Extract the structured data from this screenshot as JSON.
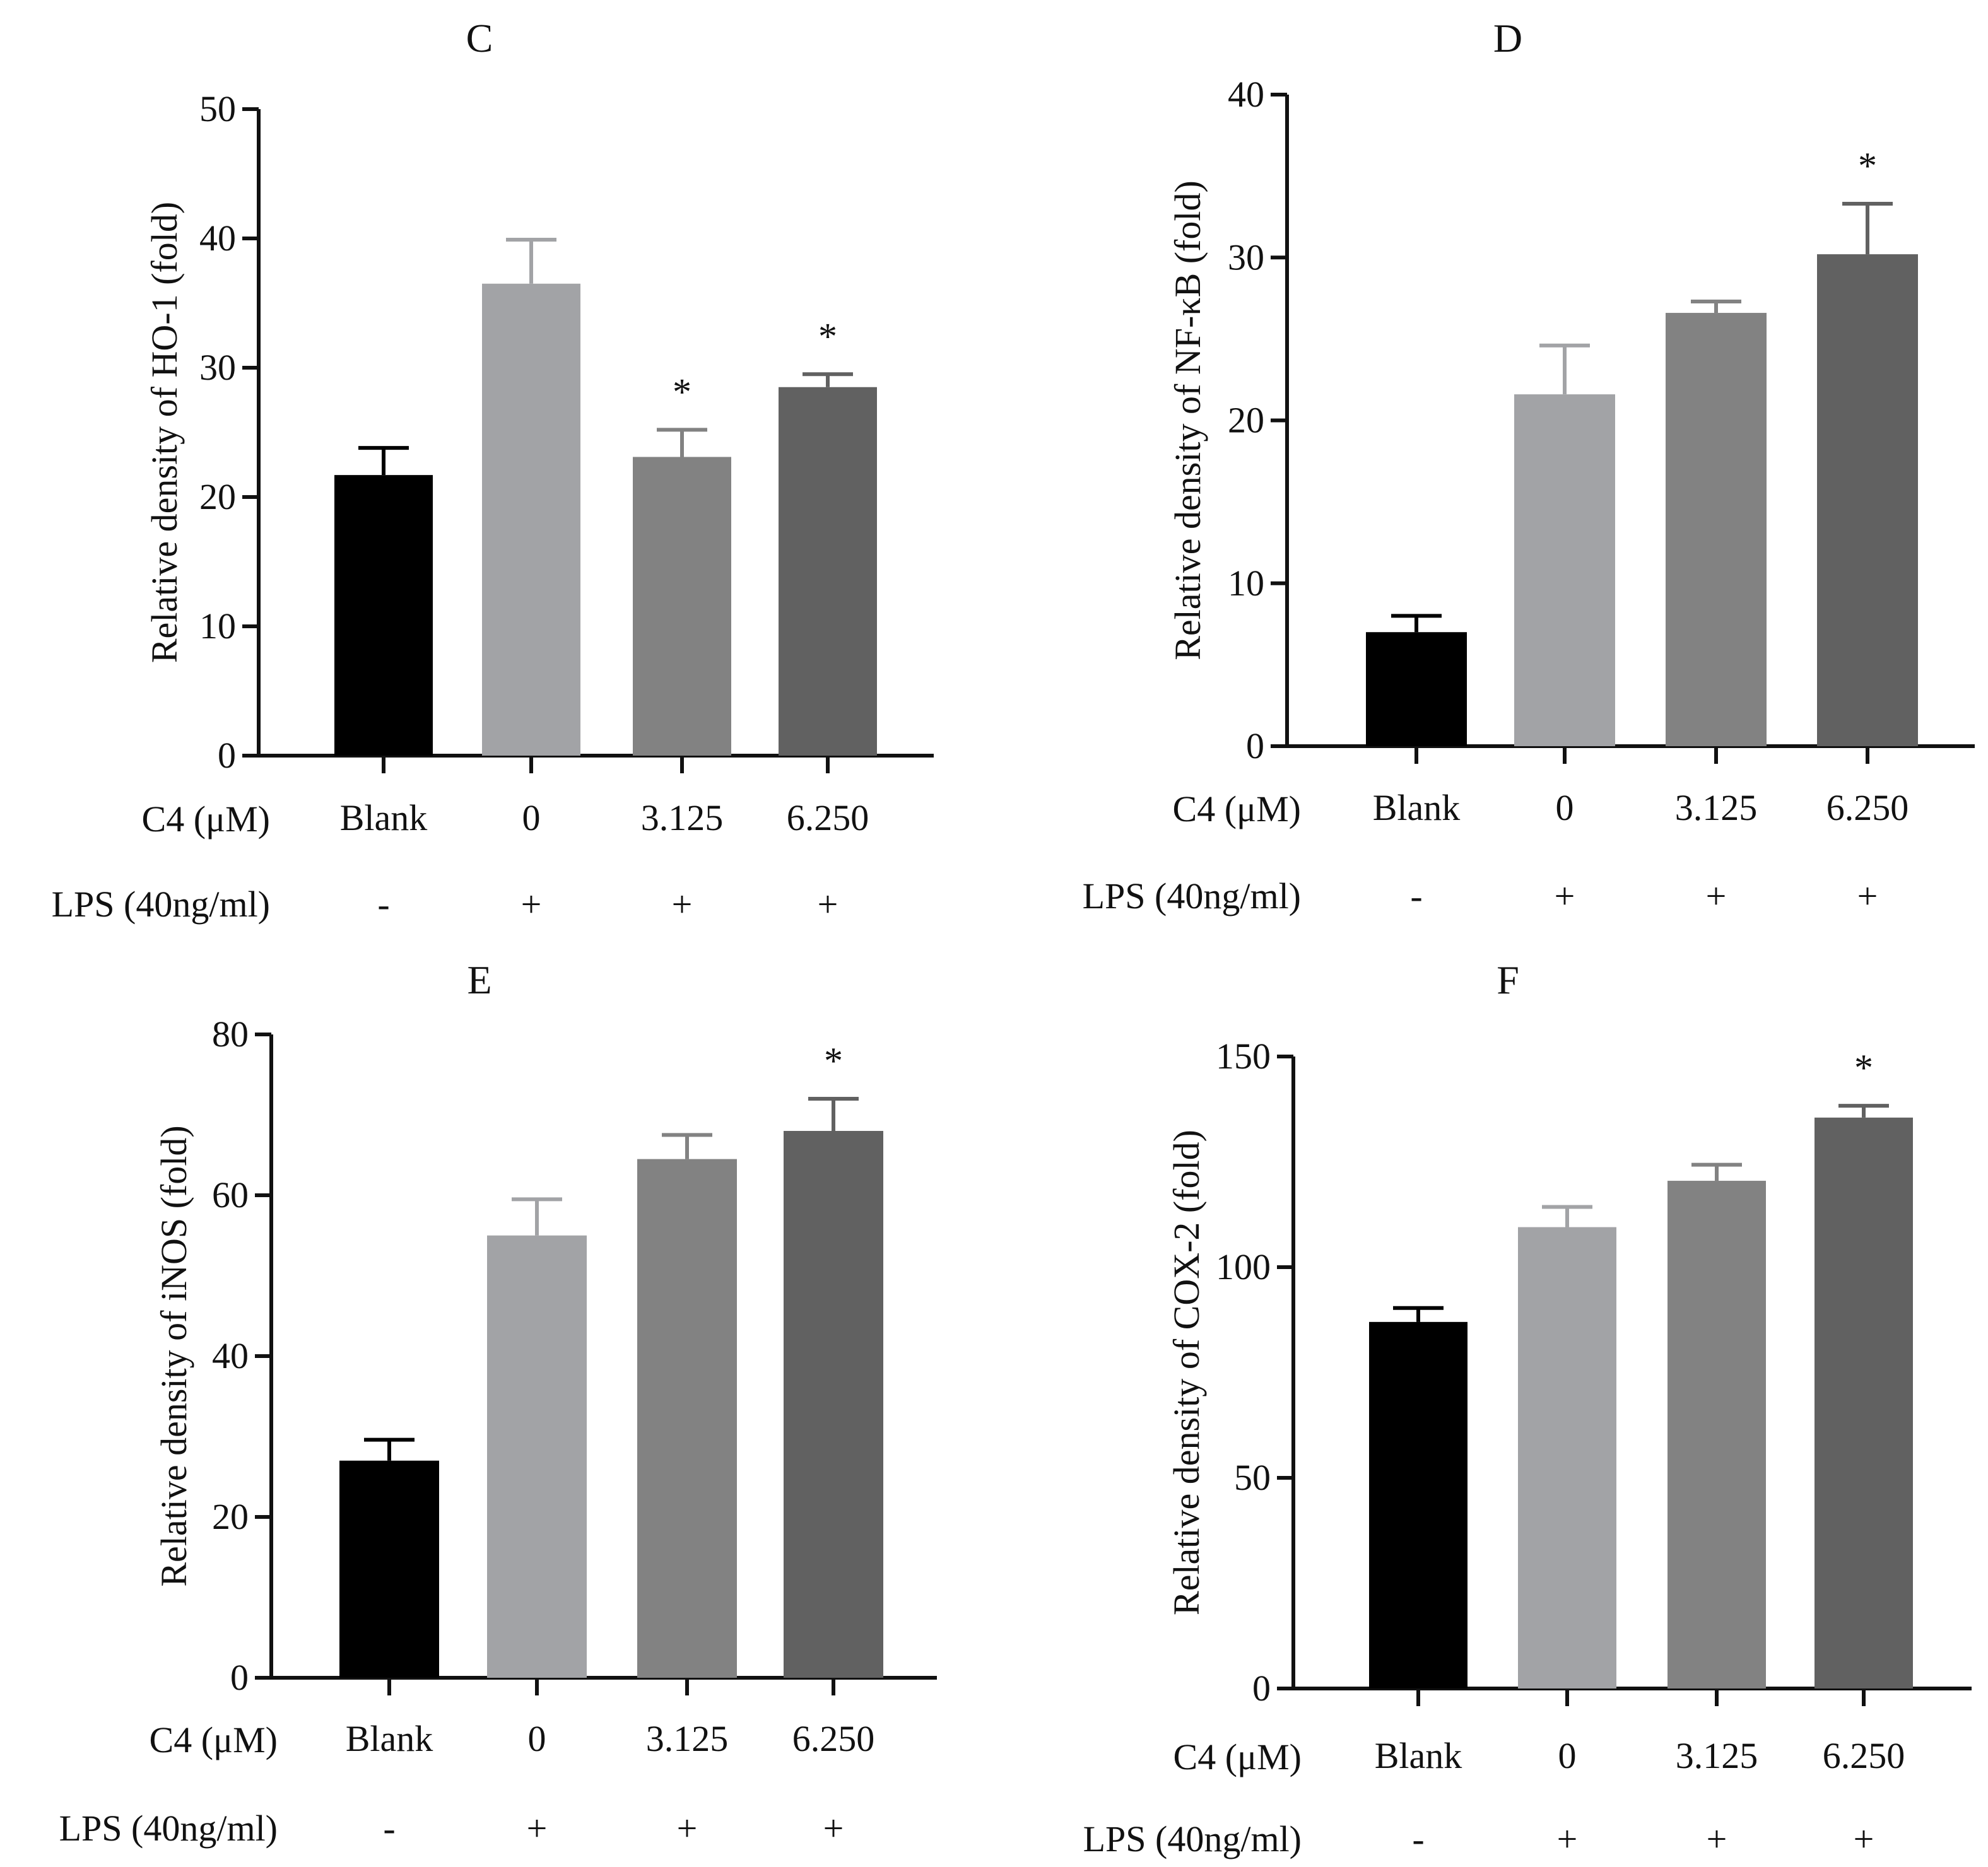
{
  "chart_data": [
    {
      "type": "bar",
      "panel": "C",
      "title": "C",
      "ylabel": "Relative density of HO-1 (fold)",
      "ylim": [
        0,
        50
      ],
      "yticks": [
        0,
        10,
        20,
        30,
        40,
        50
      ],
      "row_labels": [
        "C4 (μM)",
        "LPS (40ng/ml)"
      ],
      "categories": [
        "Blank",
        "0",
        "3.125",
        "6.250"
      ],
      "lps": [
        "-",
        "+",
        "+",
        "+"
      ],
      "values": [
        21.7,
        36.5,
        23.1,
        28.5
      ],
      "errors": [
        2.1,
        3.4,
        2.1,
        1.0
      ],
      "significance": [
        "",
        "",
        "*",
        "*"
      ]
    },
    {
      "type": "bar",
      "panel": "D",
      "title": "D",
      "ylabel": "Relative density of  NF-κB (fold)",
      "ylim": [
        0,
        40
      ],
      "yticks": [
        0,
        10,
        20,
        30,
        40
      ],
      "row_labels": [
        "C4 (μM)",
        "LPS (40ng/ml)"
      ],
      "categories": [
        "Blank",
        "0",
        "3.125",
        "6.250"
      ],
      "lps": [
        "-",
        "+",
        "+",
        "+"
      ],
      "values": [
        7.0,
        21.6,
        26.6,
        30.2
      ],
      "errors": [
        1.0,
        3.0,
        0.7,
        3.1
      ],
      "significance": [
        "",
        "",
        "",
        "*"
      ]
    },
    {
      "type": "bar",
      "panel": "E",
      "title": "E",
      "ylabel": "Relative density of  iNOS (fold)",
      "ylim": [
        0,
        80
      ],
      "yticks": [
        0,
        20,
        40,
        60,
        80
      ],
      "row_labels": [
        "C4 (μM)",
        "LPS (40ng/ml)"
      ],
      "categories": [
        "Blank",
        "0",
        "3.125",
        "6.250"
      ],
      "lps": [
        "-",
        "+",
        "+",
        "+"
      ],
      "values": [
        27.0,
        55.0,
        64.5,
        68.0
      ],
      "errors": [
        2.6,
        4.5,
        3.0,
        4.0
      ],
      "significance": [
        "",
        "",
        "",
        "*"
      ]
    },
    {
      "type": "bar",
      "panel": "F",
      "title": "F",
      "ylabel": "Relative density of  COX-2 (fold)",
      "ylim": [
        0,
        150
      ],
      "yticks": [
        0,
        50,
        100,
        150
      ],
      "row_labels": [
        "C4 (μM)",
        "LPS (40ng/ml)"
      ],
      "categories": [
        "Blank",
        "0",
        "3.125",
        "6.250"
      ],
      "lps": [
        "-",
        "+",
        "+",
        "+"
      ],
      "values": [
        87.0,
        109.5,
        120.5,
        135.5
      ],
      "errors": [
        3.3,
        4.8,
        3.8,
        2.8
      ],
      "significance": [
        "",
        "",
        "",
        "*"
      ]
    }
  ],
  "colors": {
    "bars": [
      "#000000",
      "#a2a3a6",
      "#828282",
      "#616161"
    ],
    "axis": "#111111"
  }
}
